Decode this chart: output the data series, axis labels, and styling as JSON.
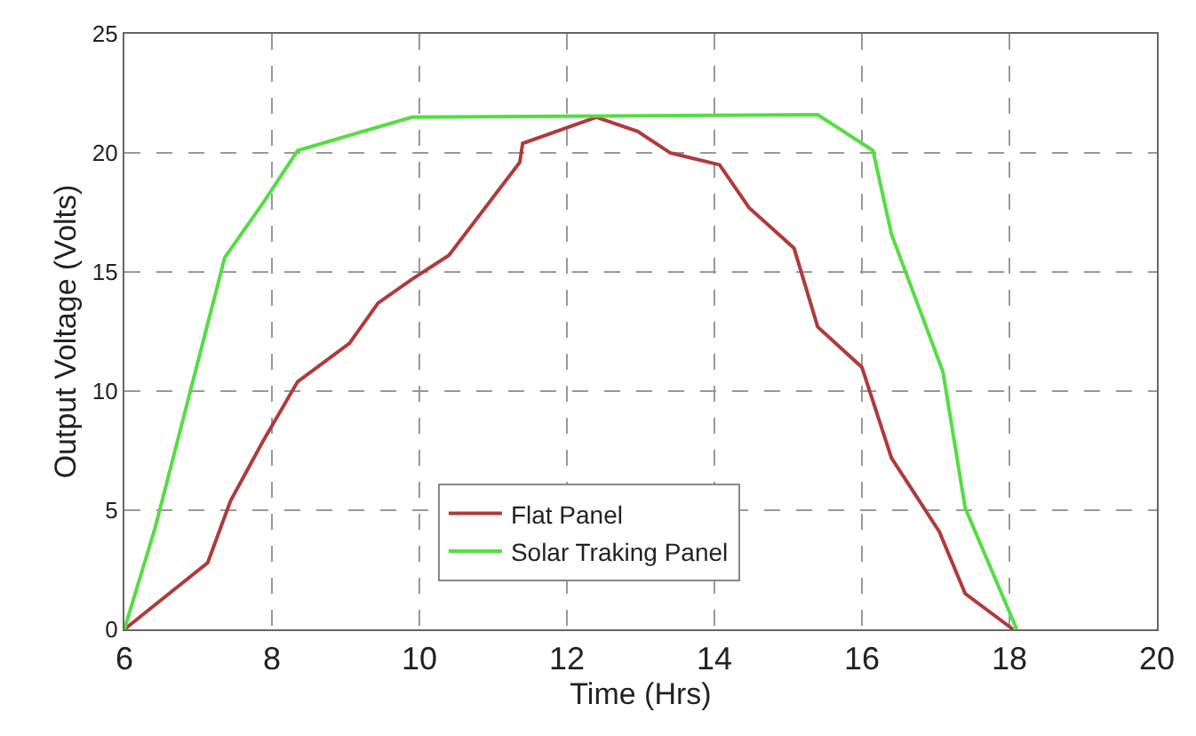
{
  "chart_data": {
    "type": "line",
    "xlabel": "Time (Hrs)",
    "ylabel": "Output Voltage (Volts)",
    "xlim": [
      6,
      20
    ],
    "xticks": [
      6,
      8,
      10,
      12,
      14,
      16,
      18,
      20
    ],
    "ylim": [
      0,
      25
    ],
    "yticks": [
      0,
      5,
      10,
      15,
      20,
      25
    ],
    "grid": true,
    "legend": "bottom",
    "line_style": "solid",
    "marker": "none",
    "series": [
      {
        "name": "Flat Panel",
        "color": "#b03a3a",
        "x": [
          6,
          7.13,
          7.44,
          7.88,
          8.35,
          9.05,
          9.44,
          9.9,
          10.4,
          11.36,
          11.4,
          12.4,
          12.96,
          13.4,
          14.07,
          14.47,
          15.08,
          15.4,
          16.0,
          16.4,
          17.05,
          17.4,
          18.05
        ],
        "values": [
          0,
          2.8,
          5.4,
          7.9,
          10.4,
          12,
          13.7,
          14.7,
          15.7,
          19.6,
          20.4,
          21.5,
          20.9,
          20,
          19.5,
          17.7,
          16,
          12.7,
          11,
          7.2,
          4.1,
          1.5,
          0
        ]
      },
      {
        "name": "Solar Traking Panel",
        "color": "#55dd44",
        "x": [
          6,
          6.42,
          7.36,
          7.88,
          8.35,
          9.9,
          15.4,
          16.15,
          16.4,
          17.1,
          17.4,
          18.1
        ],
        "values": [
          0,
          4.3,
          15.6,
          17.9,
          20.1,
          21.5,
          21.6,
          20.1,
          16.6,
          10.8,
          5.1,
          0
        ]
      }
    ]
  }
}
